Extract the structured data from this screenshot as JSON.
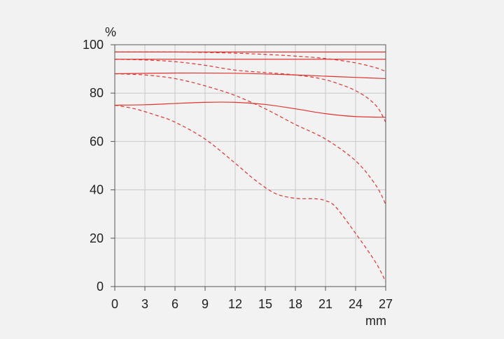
{
  "chart_data": {
    "type": "line",
    "xlabel": "mm",
    "ylabel": "%",
    "xlim": [
      0,
      27
    ],
    "ylim": [
      0,
      100
    ],
    "x_ticks": [
      "0",
      "3",
      "6",
      "9",
      "12",
      "15",
      "18",
      "21",
      "24",
      "27"
    ],
    "y_ticks": [
      "0",
      "20",
      "40",
      "60",
      "80",
      "100"
    ],
    "grid": true,
    "line_color": "#e0332f",
    "grid_color": "#c8c8c8",
    "series": [
      {
        "style": "solid",
        "x": [
          0,
          9,
          18,
          27
        ],
        "y": [
          97,
          97,
          97,
          97
        ]
      },
      {
        "style": "solid",
        "x": [
          0,
          9,
          18,
          27
        ],
        "y": [
          94,
          94,
          94,
          94
        ]
      },
      {
        "style": "solid",
        "x": [
          0,
          6,
          12,
          18,
          21,
          24,
          27
        ],
        "y": [
          88,
          88.3,
          88.2,
          87.5,
          87,
          86.5,
          86
        ]
      },
      {
        "style": "solid",
        "x": [
          0,
          3,
          6,
          9,
          12,
          15,
          18,
          21,
          24,
          27
        ],
        "y": [
          75,
          75.2,
          75.7,
          76.2,
          76.2,
          75.3,
          73.5,
          71.5,
          70.3,
          70
        ]
      },
      {
        "style": "dashed",
        "x": [
          0,
          3,
          6,
          9,
          12,
          15,
          18,
          21,
          24,
          26,
          27
        ],
        "y": [
          97,
          97,
          97,
          96.8,
          96.5,
          96,
          95.3,
          94.3,
          92.5,
          90.5,
          89
        ]
      },
      {
        "style": "dashed",
        "x": [
          0,
          3,
          6,
          9,
          12,
          15,
          18,
          21,
          24,
          26,
          27
        ],
        "y": [
          94,
          93.7,
          93,
          91.5,
          89.5,
          88.5,
          87.5,
          85.5,
          81,
          75,
          68
        ]
      },
      {
        "style": "dashed",
        "x": [
          0,
          3,
          6,
          9,
          12,
          15,
          18,
          21,
          24,
          26,
          27
        ],
        "y": [
          88,
          87.5,
          86,
          83,
          79,
          73.5,
          67,
          61,
          52,
          42,
          34
        ]
      },
      {
        "style": "dashed",
        "x": [
          0,
          2,
          4,
          6,
          9,
          12,
          14,
          16,
          18,
          20,
          21,
          22,
          24,
          26,
          27
        ],
        "y": [
          75,
          73.5,
          71,
          68,
          61,
          51,
          44,
          38.5,
          36.5,
          36.3,
          35.5,
          33,
          22,
          10,
          2
        ]
      }
    ]
  }
}
